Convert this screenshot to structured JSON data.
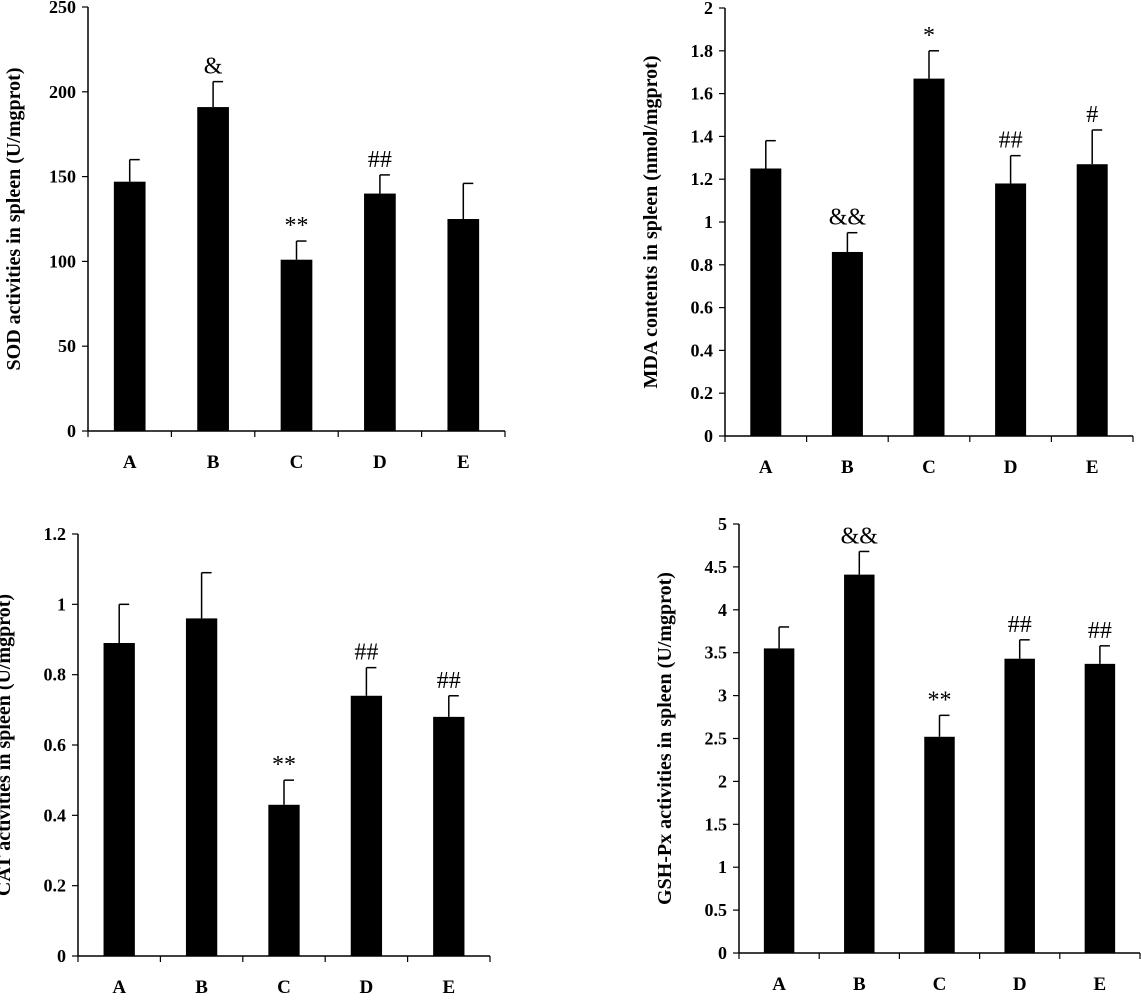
{
  "chart_data": [
    {
      "type": "bar",
      "categories": [
        "A",
        "B",
        "C",
        "D",
        "E"
      ],
      "values": [
        147,
        191,
        101,
        140,
        125
      ],
      "errors": [
        13,
        15,
        11,
        11,
        21
      ],
      "annotations": [
        "",
        "&",
        "**",
        "##",
        ""
      ],
      "ylabel": "SOD activities in spleen (U/mgprot)",
      "ylim": [
        0,
        250
      ],
      "yticks": [
        "0",
        "50",
        "100",
        "150",
        "200",
        "250"
      ],
      "color": "#000000"
    },
    {
      "type": "bar",
      "categories": [
        "A",
        "B",
        "C",
        "D",
        "E"
      ],
      "values": [
        1.25,
        0.86,
        1.67,
        1.18,
        1.27
      ],
      "errors": [
        0.13,
        0.09,
        0.13,
        0.13,
        0.16
      ],
      "annotations": [
        "",
        "&&",
        "*",
        "##",
        "#"
      ],
      "ylabel": "MDA contents in spleen (nmol/mgprot)",
      "ylim": [
        0,
        2
      ],
      "yticks": [
        "0",
        "0.2",
        "0.4",
        "0.6",
        "0.8",
        "1",
        "1.2",
        "1.4",
        "1.6",
        "1.8",
        "2"
      ],
      "color": "#000000"
    },
    {
      "type": "bar",
      "categories": [
        "A",
        "B",
        "C",
        "D",
        "E"
      ],
      "values": [
        0.89,
        0.96,
        0.43,
        0.74,
        0.68
      ],
      "errors": [
        0.11,
        0.13,
        0.07,
        0.08,
        0.06
      ],
      "annotations": [
        "",
        "",
        "**",
        "##",
        "##"
      ],
      "ylabel": "CAT activities in spleen (U/mgprot)",
      "ylim": [
        0,
        1.2
      ],
      "yticks": [
        "0",
        "0.2",
        "0.4",
        "0.6",
        "0.8",
        "1",
        "1.2"
      ],
      "color": "#000000"
    },
    {
      "type": "bar",
      "categories": [
        "A",
        "B",
        "C",
        "D",
        "E"
      ],
      "values": [
        3.55,
        4.41,
        2.52,
        3.43,
        3.37
      ],
      "errors": [
        0.25,
        0.27,
        0.25,
        0.22,
        0.21
      ],
      "annotations": [
        "",
        "&&",
        "**",
        "##",
        "##"
      ],
      "ylabel": "GSH-Px activities in spleen (U/mgprot)",
      "ylim": [
        0,
        5
      ],
      "yticks": [
        "0",
        "0.5",
        "1",
        "1.5",
        "2",
        "2.5",
        "3",
        "3.5",
        "4",
        "4.5",
        "5"
      ],
      "color": "#000000"
    }
  ]
}
